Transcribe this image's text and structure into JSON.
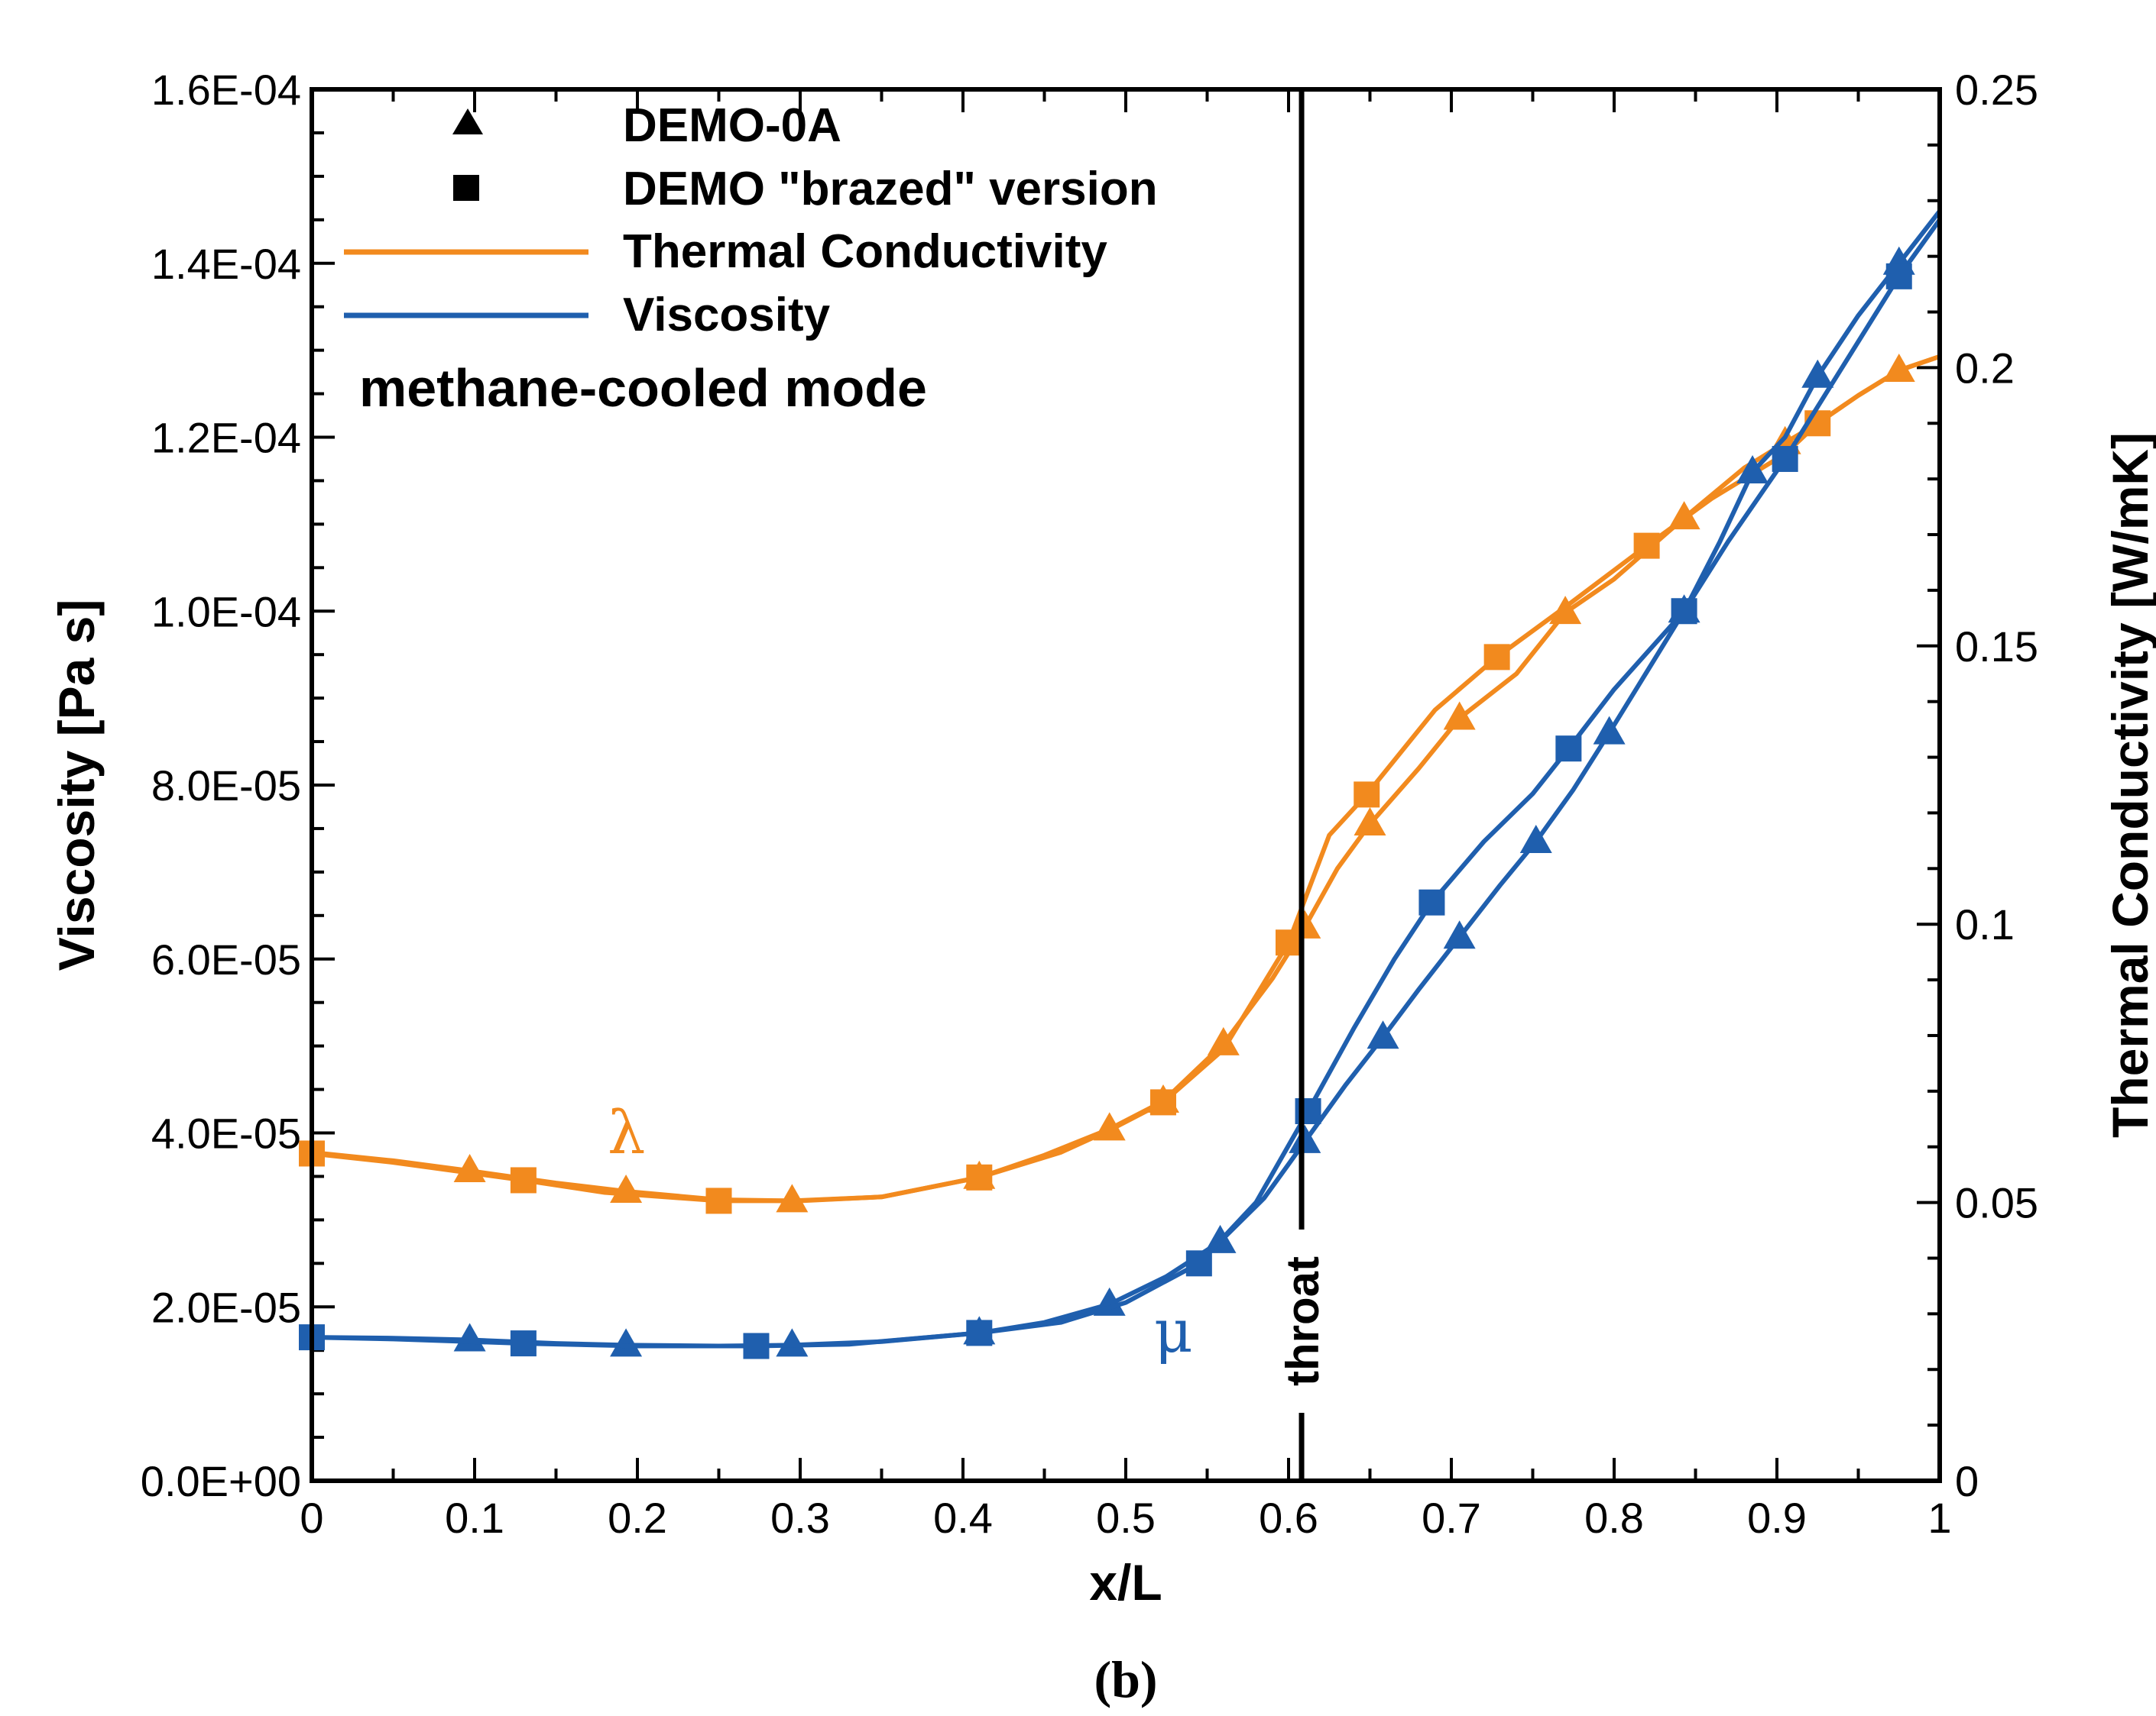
{
  "chart_data": {
    "type": "line",
    "title": "",
    "caption": "(b)",
    "xlabel": "x/L",
    "ylabel_left": "Viscosity [Pa s]",
    "ylabel_right": "Thermal Conductivity [W/mK]",
    "xlim": [
      0,
      1
    ],
    "ylim_left": [
      0,
      0.00016
    ],
    "ylim_right": [
      0,
      0.25
    ],
    "x_ticks": [
      "0",
      "0.1",
      "0.2",
      "0.3",
      "0.4",
      "0.5",
      "0.6",
      "0.7",
      "0.8",
      "0.9",
      "1"
    ],
    "y_left_ticks": [
      "0.0E+00",
      "2.0E-05",
      "4.0E-05",
      "6.0E-05",
      "8.0E-05",
      "1.0E-04",
      "1.2E-04",
      "1.4E-04",
      "1.6E-04"
    ],
    "y_right_ticks": [
      "0",
      "0.05",
      "0.1",
      "0.15",
      "0.2",
      "0.25"
    ],
    "legend": {
      "entries": [
        {
          "label": "DEMO-0A",
          "marker": "triangle"
        },
        {
          "label": "DEMO \"brazed\" version",
          "marker": "square"
        },
        {
          "label": "Thermal Conductivity",
          "line_color": "#f28a1e"
        },
        {
          "label": "Viscosity",
          "line_color": "#1f5fae"
        }
      ],
      "placement": "top-left"
    },
    "annotations": {
      "mode": "methane-cooled mode",
      "throat_label": "throat",
      "throat_x": 0.608,
      "lambda_label": "λ",
      "mu_label": "μ"
    },
    "colors": {
      "thermal": "#f28a1e",
      "viscosity": "#1f5fae"
    },
    "series": [
      {
        "name": "Thermal Conductivity — DEMO-0A",
        "axis": "right",
        "color": "#f28a1e",
        "marker": "triangle",
        "x": [
          0,
          0.05,
          0.097,
          0.15,
          0.193,
          0.25,
          0.295,
          0.35,
          0.41,
          0.45,
          0.49,
          0.523,
          0.56,
          0.59,
          0.61,
          0.63,
          0.65,
          0.68,
          0.705,
          0.74,
          0.77,
          0.8,
          0.843,
          0.88,
          0.905,
          0.925,
          0.95,
          0.975,
          1.0
        ],
        "y": [
          0.059,
          0.0575,
          0.0557,
          0.0535,
          0.052,
          0.0505,
          0.0503,
          0.051,
          0.0545,
          0.0585,
          0.0632,
          0.0682,
          0.0785,
          0.0902,
          0.0995,
          0.11,
          0.118,
          0.128,
          0.137,
          0.145,
          0.156,
          0.162,
          0.173,
          0.182,
          0.1865,
          0.19,
          0.195,
          0.1995,
          0.202
        ],
        "marker_x": [
          0.097,
          0.193,
          0.295,
          0.41,
          0.49,
          0.523,
          0.56,
          0.61,
          0.65,
          0.705,
          0.77,
          0.843,
          0.905,
          0.975
        ]
      },
      {
        "name": "Thermal Conductivity — DEMO brazed",
        "axis": "right",
        "color": "#f28a1e",
        "marker": "square",
        "x": [
          0,
          0.05,
          0.13,
          0.18,
          0.25,
          0.3,
          0.35,
          0.41,
          0.46,
          0.49,
          0.523,
          0.56,
          0.6,
          0.625,
          0.648,
          0.69,
          0.728,
          0.77,
          0.82,
          0.86,
          0.905,
          0.925,
          0.95,
          0.975,
          1.0
        ],
        "y": [
          0.0588,
          0.0572,
          0.054,
          0.0518,
          0.0503,
          0.0503,
          0.051,
          0.0545,
          0.059,
          0.063,
          0.068,
          0.0775,
          0.0967,
          0.116,
          0.1233,
          0.1385,
          0.148,
          0.157,
          0.168,
          0.1765,
          0.1845,
          0.19,
          0.195,
          0.1995,
          0.202
        ],
        "marker_x": [
          0.0,
          0.13,
          0.25,
          0.41,
          0.523,
          0.6,
          0.648,
          0.728,
          0.82,
          0.925
        ]
      },
      {
        "name": "Viscosity — DEMO-0A",
        "axis": "left",
        "color": "#1f5fae",
        "marker": "triangle",
        "x": [
          0,
          0.05,
          0.097,
          0.15,
          0.193,
          0.25,
          0.295,
          0.35,
          0.41,
          0.45,
          0.49,
          0.525,
          0.558,
          0.585,
          0.61,
          0.635,
          0.658,
          0.68,
          0.705,
          0.73,
          0.752,
          0.775,
          0.797,
          0.82,
          0.843,
          0.865,
          0.885,
          0.905,
          0.925,
          0.95,
          0.975,
          1.0
        ],
        "y": [
          1.65e-05,
          1.64e-05,
          1.62e-05,
          1.58e-05,
          1.56e-05,
          1.55e-05,
          1.56e-05,
          1.6e-05,
          1.7e-05,
          1.82e-05,
          2.03e-05,
          2.35e-05,
          2.75e-05,
          3.25e-05,
          3.9e-05,
          4.55e-05,
          5.1e-05,
          5.65e-05,
          6.25e-05,
          6.85e-05,
          7.35e-05,
          7.95e-05,
          8.6e-05,
          9.3e-05,
          0.0001,
          0.000108,
          0.000116,
          0.00012,
          0.000127,
          0.000134,
          0.00014,
          0.000146
        ],
        "marker_x": [
          0.097,
          0.193,
          0.295,
          0.41,
          0.49,
          0.558,
          0.61,
          0.658,
          0.705,
          0.752,
          0.797,
          0.843,
          0.885,
          0.925,
          0.975
        ]
      },
      {
        "name": "Viscosity — DEMO brazed",
        "axis": "left",
        "color": "#1f5fae",
        "marker": "square",
        "x": [
          0,
          0.05,
          0.13,
          0.2,
          0.273,
          0.33,
          0.41,
          0.46,
          0.5,
          0.545,
          0.58,
          0.612,
          0.64,
          0.665,
          0.688,
          0.72,
          0.75,
          0.772,
          0.8,
          0.843,
          0.87,
          0.905,
          0.94,
          0.975,
          1.0
        ],
        "y": [
          1.65e-05,
          1.63e-05,
          1.58e-05,
          1.55e-05,
          1.55e-05,
          1.57e-05,
          1.7e-05,
          1.82e-05,
          2.05e-05,
          2.5e-05,
          3.2e-05,
          4.25e-05,
          5.2e-05,
          6e-05,
          6.65e-05,
          7.35e-05,
          7.9e-05,
          8.42e-05,
          9.1e-05,
          0.0001,
          0.000108,
          0.0001175,
          0.000128,
          0.0001385,
          0.000145
        ],
        "marker_x": [
          0.0,
          0.13,
          0.273,
          0.41,
          0.545,
          0.612,
          0.688,
          0.772,
          0.843,
          0.905,
          0.975
        ]
      }
    ]
  }
}
